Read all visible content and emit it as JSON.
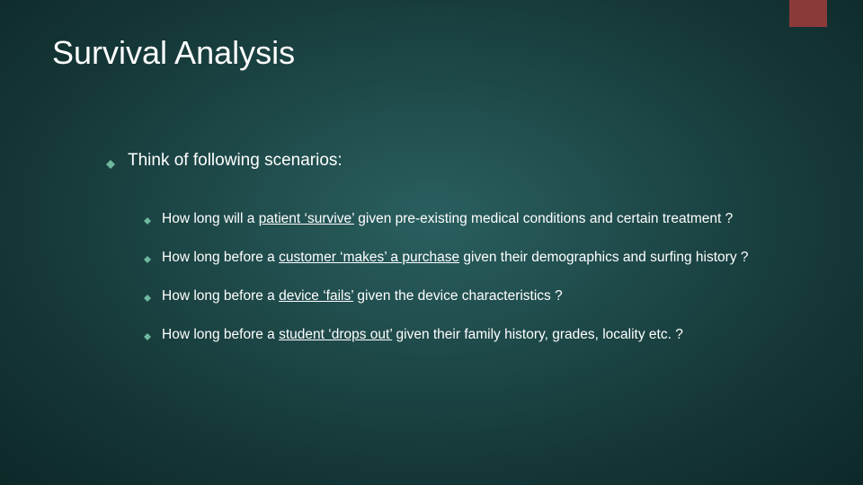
{
  "slide": {
    "title": "Survival Analysis",
    "accent_color": "#8b3a3a",
    "bullet_color": "#6fb89f",
    "background_gradient": [
      "#2a5f5f",
      "#1f4a4a",
      "#163838",
      "#0e2828"
    ],
    "text_color": "#ffffff",
    "title_fontsize": 36,
    "l1_fontsize": 19,
    "l2_fontsize": 15.5,
    "level1": {
      "text": "Think of following scenarios:"
    },
    "level2": [
      {
        "pre": "How long will a ",
        "underlined": "patient ‘survive’",
        "post": " given pre-existing medical conditions and certain treatment ?"
      },
      {
        "pre": "How long before a ",
        "underlined": "customer ‘makes’ a purchase",
        "post": " given their demographics and surfing history ?"
      },
      {
        "pre": "How long before a ",
        "underlined": "device ‘fails’",
        "post": " given the device characteristics ?"
      },
      {
        "pre": "How long before a ",
        "underlined": "student ‘drops out’",
        "post": " given their family history, grades, locality etc. ?"
      }
    ]
  }
}
